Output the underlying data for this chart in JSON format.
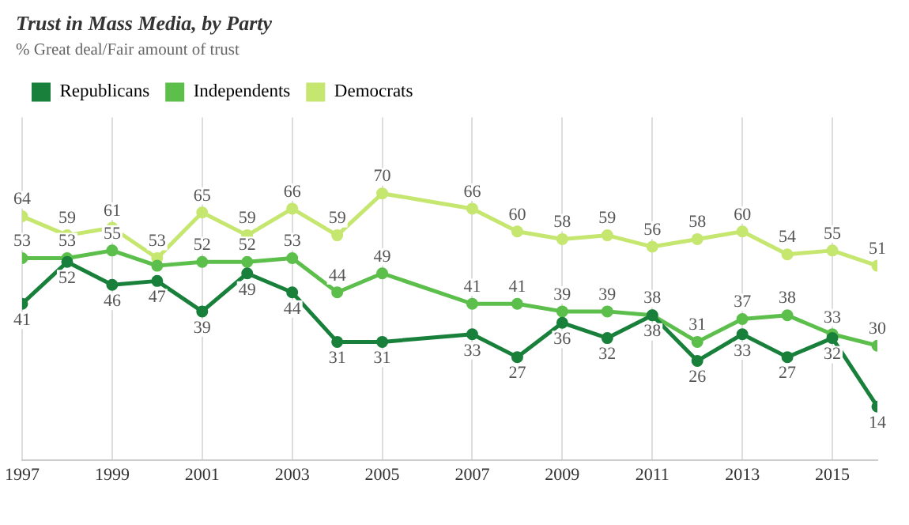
{
  "chart_data": {
    "type": "line",
    "title": "Trust in Mass Media, by Party",
    "subtitle": "% Great deal/Fair amount of trust",
    "x": [
      1997,
      1998,
      1999,
      2000,
      2001,
      2002,
      2003,
      2004,
      2005,
      2007,
      2008,
      2009,
      2010,
      2011,
      2012,
      2013,
      2014,
      2015,
      2016
    ],
    "xlim": [
      1997,
      2016
    ],
    "xticks": [
      1997,
      1999,
      2001,
      2003,
      2005,
      2007,
      2009,
      2011,
      2013,
      2015
    ],
    "ylim": [
      0,
      90
    ],
    "tick_labels": "x",
    "grid": "x",
    "legend": "top left",
    "marker": "circle",
    "line_style": "solid",
    "series": [
      {
        "name": "Republicans",
        "color": "#18803a",
        "values": [
          41,
          52,
          46,
          47,
          39,
          49,
          44,
          31,
          31,
          33,
          27,
          36,
          32,
          38,
          26,
          33,
          27,
          32,
          14
        ],
        "value_labels": [
          "41",
          "52",
          "46",
          "47",
          "39",
          "49",
          "44",
          "31",
          "31",
          "33",
          "27",
          "36",
          "32",
          "38",
          "26",
          "33",
          "27",
          "32",
          "14"
        ]
      },
      {
        "name": "Independents",
        "color": "#5cbf4b",
        "values": [
          53,
          53,
          55,
          51,
          52,
          52,
          53,
          44,
          49,
          41,
          41,
          39,
          39,
          38,
          31,
          37,
          38,
          33,
          30
        ],
        "value_labels": [
          "53",
          "53",
          "55",
          null,
          "52",
          "52",
          "53",
          "44",
          "49",
          "41",
          "41",
          "39",
          "39",
          "38",
          "31",
          "37",
          "38",
          "33",
          "30"
        ]
      },
      {
        "name": "Democrats",
        "color": "#c5e66f",
        "values": [
          64,
          59,
          61,
          53,
          65,
          59,
          66,
          59,
          70,
          66,
          60,
          58,
          59,
          56,
          58,
          60,
          54,
          55,
          51
        ],
        "value_labels": [
          "64",
          "59",
          "61",
          "53",
          "65",
          "59",
          "66",
          "59",
          "70",
          "66",
          "60",
          "58",
          "59",
          "56",
          "58",
          "60",
          "54",
          "55",
          "51"
        ]
      }
    ]
  }
}
